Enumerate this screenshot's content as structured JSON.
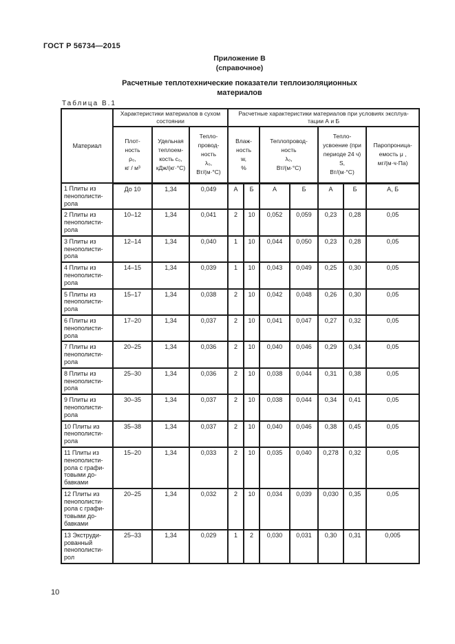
{
  "page": {
    "doc_code": "ГОСТ Р 56734—2015",
    "appendix_line1": "Приложение В",
    "appendix_line2": "(справочное)",
    "title": "Расчетные теплотехнические показатели теплоизоляционных материалов",
    "page_number": "10"
  },
  "table": {
    "caption": "Таблица В.1",
    "col_material": "Материал",
    "group_dry": "Характеристики материалов в сухом состоянии",
    "group_ab": "Расчетные характеристики материалов при условиях эксплуа-тации А и Б",
    "col_density": "Плот-\nность\nρ₀,\nкг / м³",
    "col_heat_capacity": "Удельная\nтеплоем-\nкость с₀,\nкДж/(кг·°С)",
    "col_conductivity_dry": "Тепло-\nпровод-\nность\nλ₀,\nВт/(м·°С)",
    "col_humidity": "Влаж-\nность\nw,\n%",
    "col_conductivity_ab": "Теплопровод-\nность\nλ₀,\nВт/(м·°С)",
    "col_heat_assimilation": "Тепло-\nусвоение (при\nпериоде 24 ч)\nS,\nВт/(м·°С)",
    "col_vapor_permeability": "Паропроница-\nемость μ ,\nмг/(м·ч·Па)",
    "rows": [
      {
        "cells": [
          "1 Плиты из пенополисти-рола",
          "До 10",
          "1,34",
          "0,049",
          "А",
          "Б",
          "А",
          "Б",
          "А",
          "Б",
          "А, Б"
        ]
      },
      {
        "cells": [
          "2 Плиты из пенополисти-рола",
          "10–12",
          "1,34",
          "0,041",
          "2",
          "10",
          "0,052",
          "0,059",
          "0,23",
          "0,28",
          "0,05"
        ]
      },
      {
        "cells": [
          "3 Плиты из пенополисти-рола",
          "12–14",
          "1,34",
          "0,040",
          "1",
          "10",
          "0,044",
          "0,050",
          "0,23",
          "0,28",
          "0,05"
        ]
      },
      {
        "cells": [
          "4 Плиты из пенополисти-рола",
          "14–15",
          "1,34",
          "0,039",
          "1",
          "10",
          "0,043",
          "0,049",
          "0,25",
          "0,30",
          "0,05"
        ]
      },
      {
        "cells": [
          "5 Плиты из пенополисти-рола",
          "15–17",
          "1,34",
          "0,038",
          "2",
          "10",
          "0,042",
          "0,048",
          "0,26",
          "0,30",
          "0,05"
        ]
      },
      {
        "cells": [
          "6 Плиты из пенополисти-рола",
          "17–20",
          "1,34",
          "0,037",
          "2",
          "10",
          "0,041",
          "0,047",
          "0,27",
          "0,32",
          "0,05"
        ]
      },
      {
        "cells": [
          "7 Плиты из пенополисти-рола",
          "20–25",
          "1,34",
          "0,036",
          "2",
          "10",
          "0,040",
          "0,046",
          "0,29",
          "0,34",
          "0,05"
        ]
      },
      {
        "cells": [
          "8 Плиты из пенополисти-рола",
          "25–30",
          "1,34",
          "0,036",
          "2",
          "10",
          "0,038",
          "0,044",
          "0,31",
          "0,38",
          "0,05"
        ]
      },
      {
        "cells": [
          "9 Плиты из пенополисти-рола",
          "30–35",
          "1,34",
          "0,037",
          "2",
          "10",
          "0,038",
          "0,044",
          "0,34",
          "0,41",
          "0,05"
        ]
      },
      {
        "cells": [
          "10 Плиты из пенополисти-рола",
          "35–38",
          "1,34",
          "0,037",
          "2",
          "10",
          "0,040",
          "0,046",
          "0,38",
          "0,45",
          "0,05"
        ]
      },
      {
        "cells": [
          "11 Плиты из пенополисти-рола с графи-товыми до-бавками",
          "15–20",
          "1,34",
          "0,033",
          "2",
          "10",
          "0,035",
          "0,040",
          "0,278",
          "0,32",
          "0,05"
        ]
      },
      {
        "cells": [
          "12 Плиты из пенополисти-рола с графи-товыми до-бавками",
          "20–25",
          "1,34",
          "0,032",
          "2",
          "10",
          "0,034",
          "0,039",
          "0,030",
          "0,35",
          "0,05"
        ]
      },
      {
        "cells": [
          "13 Экструди-рованный пенополисти-рол",
          "25–33",
          "1,34",
          "0,029",
          "1",
          "2",
          "0,030",
          "0,031",
          "0,30",
          "0,31",
          "0,005"
        ]
      }
    ]
  }
}
